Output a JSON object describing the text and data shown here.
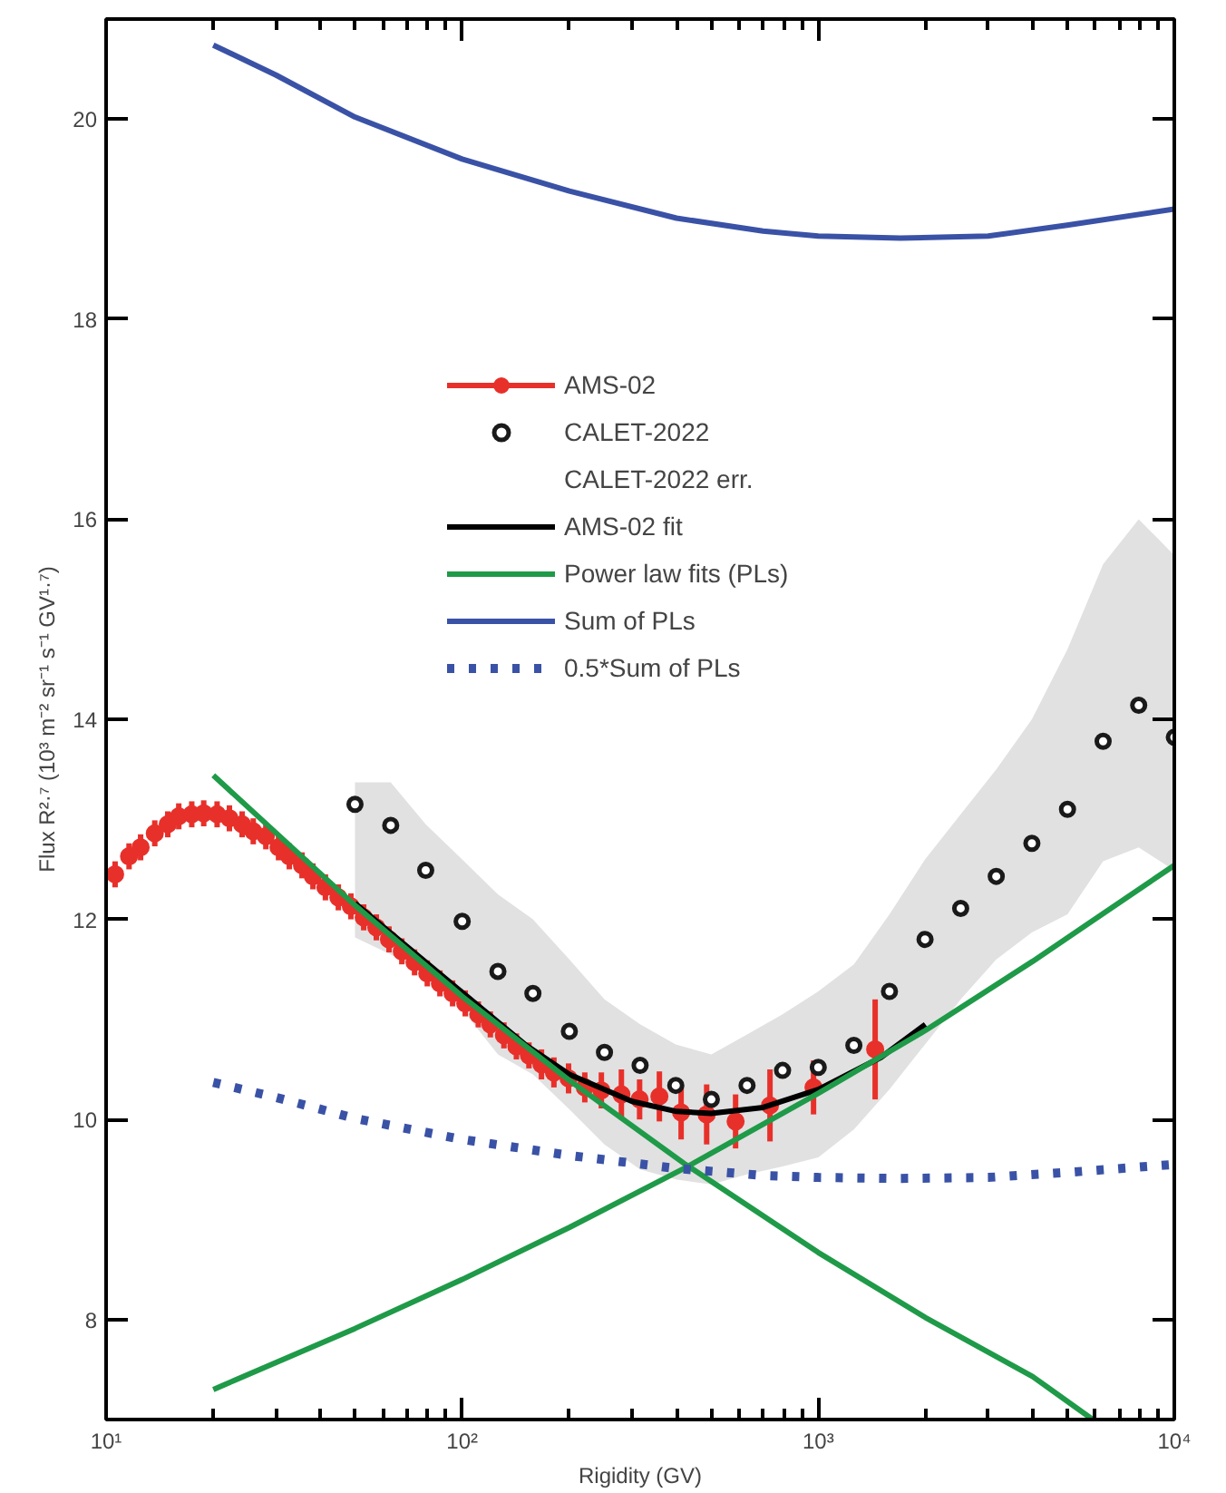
{
  "chart_data": {
    "type": "scatter",
    "xlabel": "Rigidity (GV)",
    "ylabel": "Flux R²·⁷ (10³ m⁻² sr⁻¹ s⁻¹ GV¹·⁷)",
    "log": "x",
    "xlim": [
      10,
      10000
    ],
    "ylim": [
      7,
      21
    ],
    "xticks": [
      {
        "value": 10,
        "label": "10¹"
      },
      {
        "value": 100,
        "label": "10²"
      },
      {
        "value": 1000,
        "label": "10³"
      },
      {
        "value": 10000,
        "label": "10⁴"
      }
    ],
    "annotations": [
      "CALET-2022 err."
    ],
    "yticks": [
      8,
      10,
      12,
      14,
      16,
      18,
      20
    ],
    "grid": false,
    "legend": "top",
    "series": [
      {
        "name": "AMS-02",
        "marker": "circle",
        "color": "#e8302a",
        "x": [
          10.6,
          11.6,
          12.5,
          13.7,
          14.9,
          16.0,
          17.4,
          18.8,
          20.5,
          22.2,
          24.1,
          25.9,
          28.1,
          30.5,
          32.7,
          35.5,
          38.1,
          41.3,
          44.9,
          48.7,
          52.9,
          57.4,
          62.3,
          67.7,
          73.5,
          79.8,
          86.6,
          94.0,
          102,
          111,
          120,
          131,
          142,
          154,
          167,
          181,
          199,
          221,
          246,
          280,
          315,
          358,
          412,
          486,
          586,
          732,
          970,
          1445
        ],
        "values": [
          12.45,
          12.63,
          12.72,
          12.86,
          12.95,
          13.03,
          13.05,
          13.06,
          13.05,
          13.01,
          12.95,
          12.88,
          12.83,
          12.72,
          12.63,
          12.54,
          12.43,
          12.32,
          12.22,
          12.13,
          12.02,
          11.92,
          11.8,
          11.68,
          11.57,
          11.46,
          11.36,
          11.26,
          11.16,
          11.05,
          10.95,
          10.84,
          10.73,
          10.64,
          10.55,
          10.47,
          10.41,
          10.32,
          10.29,
          10.25,
          10.2,
          10.23,
          10.07,
          10.05,
          9.98,
          10.14,
          10.32,
          10.7
        ],
        "errors": [
          0.13,
          0.13,
          0.13,
          0.13,
          0.13,
          0.13,
          0.13,
          0.13,
          0.13,
          0.13,
          0.13,
          0.13,
          0.13,
          0.13,
          0.13,
          0.13,
          0.13,
          0.13,
          0.13,
          0.13,
          0.13,
          0.13,
          0.13,
          0.13,
          0.13,
          0.13,
          0.13,
          0.13,
          0.13,
          0.13,
          0.13,
          0.13,
          0.13,
          0.13,
          0.15,
          0.15,
          0.15,
          0.15,
          0.18,
          0.25,
          0.2,
          0.25,
          0.27,
          0.3,
          0.27,
          0.36,
          0.27,
          0.5
        ]
      },
      {
        "name": "CALET-2022",
        "marker": "circle",
        "color": "#1a1a1a",
        "x": [
          50,
          63,
          79,
          100,
          126,
          158,
          200,
          251,
          316,
          398,
          501,
          631,
          794,
          1000,
          1259,
          1585,
          1995,
          2512,
          3162,
          3981,
          5012,
          6310,
          7943,
          10000
        ],
        "values": [
          13.15,
          12.94,
          12.49,
          11.98,
          11.48,
          11.26,
          10.88,
          10.67,
          10.54,
          10.34,
          10.2,
          10.34,
          10.49,
          10.52,
          10.74,
          11.28,
          11.8,
          12.11,
          12.43,
          12.76,
          13.1,
          13.78,
          14.14,
          13.82
        ],
        "lower": [
          11.82,
          11.65,
          11.45,
          11.1,
          10.65,
          10.45,
          10.1,
          9.75,
          9.5,
          9.4,
          9.35,
          9.45,
          9.53,
          9.62,
          9.9,
          10.3,
          10.75,
          11.2,
          11.6,
          11.87,
          12.05,
          12.58,
          12.72,
          12.49
        ],
        "upper": [
          13.37,
          13.37,
          12.95,
          12.6,
          12.25,
          12.0,
          11.6,
          11.2,
          10.95,
          10.75,
          10.65,
          10.85,
          11.05,
          11.28,
          11.55,
          12.05,
          12.6,
          13.05,
          13.5,
          14.0,
          14.7,
          15.55,
          16.0,
          15.64
        ]
      },
      {
        "name": "AMS-02 fit",
        "type": "line",
        "color": "#000000",
        "x": [
          50,
          100,
          150,
          200,
          300,
          400,
          500,
          700,
          1000,
          1500,
          2000
        ],
        "values": [
          12.16,
          11.27,
          10.75,
          10.45,
          10.18,
          10.08,
          10.06,
          10.12,
          10.3,
          10.62,
          10.95
        ]
      },
      {
        "name": "Power law fits (PLs)",
        "type": "line",
        "color": "#1f9a48",
        "x": [
          20,
          50,
          100,
          200,
          420,
          1000,
          2000,
          4000,
          5900
        ],
        "values": [
          13.44,
          12.14,
          11.23,
          10.39,
          9.56,
          8.67,
          8.02,
          7.43,
          7.0
        ]
      },
      {
        "type": "line",
        "color": "#1f9a48",
        "x": [
          20,
          50,
          100,
          200,
          420,
          1000,
          2000,
          4000,
          10000
        ],
        "values": [
          7.3,
          7.91,
          8.4,
          8.92,
          9.51,
          10.26,
          10.89,
          11.58,
          12.54
        ]
      },
      {
        "name": "Sum of PLs",
        "type": "line",
        "color": "#3a52a6",
        "x": [
          20,
          30,
          50,
          100,
          200,
          400,
          700,
          1000,
          1700,
          3000,
          5000,
          10000
        ],
        "values": [
          20.74,
          20.44,
          20.02,
          19.6,
          19.28,
          19.01,
          18.88,
          18.83,
          18.81,
          18.83,
          18.94,
          19.1
        ]
      },
      {
        "name": "0.5*Sum of PLs",
        "type": "line",
        "line_style": "dotted",
        "color": "#3a52a6",
        "x": [
          20,
          30,
          50,
          100,
          200,
          400,
          700,
          1000,
          1700,
          3000,
          5000,
          10000
        ],
        "values": [
          10.37,
          10.22,
          10.01,
          9.8,
          9.64,
          9.51,
          9.44,
          9.42,
          9.41,
          9.42,
          9.47,
          9.55
        ]
      }
    ]
  }
}
